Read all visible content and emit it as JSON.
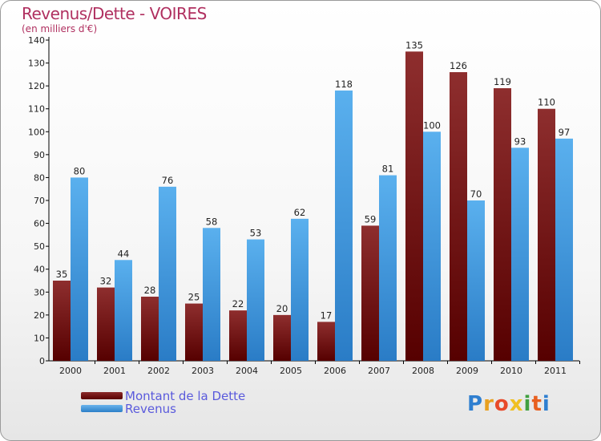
{
  "header": {
    "title": "Revenus/Dette - VOIRES",
    "subtitle": "(en milliers d'€)"
  },
  "chart_data": {
    "type": "bar",
    "categories": [
      "2000",
      "2001",
      "2002",
      "2003",
      "2004",
      "2005",
      "2006",
      "2007",
      "2008",
      "2009",
      "2010",
      "2011"
    ],
    "series": [
      {
        "name": "Montant de la Dette",
        "values": [
          35,
          32,
          28,
          25,
          22,
          20,
          17,
          59,
          135,
          126,
          119,
          110
        ],
        "color": "#7a1a1a"
      },
      {
        "name": "Revenus",
        "values": [
          80,
          44,
          76,
          58,
          53,
          62,
          118,
          81,
          100,
          70,
          93,
          97
        ],
        "color": "#4da3e6"
      }
    ],
    "ylim": [
      0,
      140
    ],
    "yticks": [
      0,
      10,
      20,
      30,
      40,
      50,
      60,
      70,
      80,
      90,
      100,
      110,
      120,
      130,
      140
    ],
    "grid": false,
    "legend_position": "bottom-left"
  },
  "legend": {
    "items": [
      {
        "label": "Montant de la Dette"
      },
      {
        "label": "Revenus"
      }
    ]
  },
  "logo": {
    "letters": [
      {
        "ch": "P",
        "color": "#2f7fd0"
      },
      {
        "ch": "r",
        "color": "#e8a020"
      },
      {
        "ch": "o",
        "color": "#e84a2a"
      },
      {
        "ch": "x",
        "color": "#f0c020"
      },
      {
        "ch": "i",
        "color": "#40a040"
      },
      {
        "ch": "t",
        "color": "#e86020"
      },
      {
        "ch": "i",
        "color": "#2f7fd0"
      }
    ]
  }
}
